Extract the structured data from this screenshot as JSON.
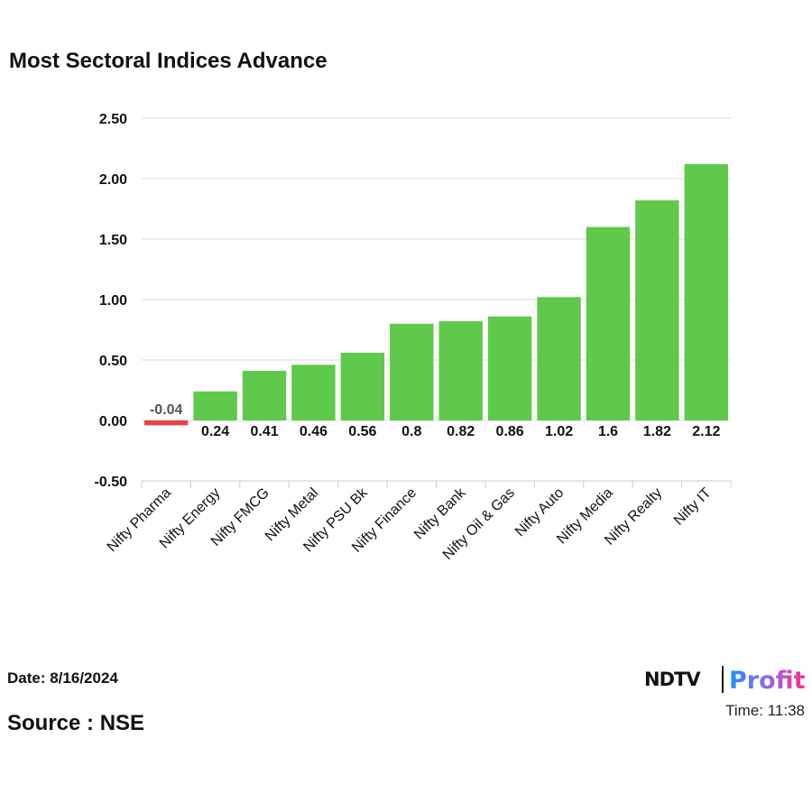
{
  "header": {
    "title": "Most Sectoral Indices Advance"
  },
  "footer": {
    "date": "Date: 8/16/2024",
    "source": "Source : NSE",
    "time": "Time: 11:38",
    "logo_text": "NDTV Profit"
  },
  "chart_data": {
    "type": "bar",
    "title": "Most Sectoral Indices Advance",
    "xlabel": "",
    "ylabel": "",
    "categories": [
      "Nifty Pharma",
      "Nifty Energy",
      "Nifty FMCG",
      "Nifty Metal",
      "Nifty PSU Bk",
      "Nifty Finance",
      "Nifty Bank",
      "Nifty Oil & Gas",
      "Nifty Auto",
      "Nifty Media",
      "Nifty Realty",
      "Nifty IT"
    ],
    "values": [
      -0.04,
      0.24,
      0.41,
      0.46,
      0.56,
      0.8,
      0.82,
      0.86,
      1.02,
      1.6,
      1.82,
      2.12
    ],
    "data_labels": [
      "-0.04",
      "0.24",
      "0.41",
      "0.46",
      "0.56",
      "0.8",
      "0.82",
      "0.86",
      "1.02",
      "1.6",
      "1.82",
      "2.12"
    ],
    "ylim": [
      -0.5,
      2.5
    ],
    "yticks": [
      "-0.50",
      "0.00",
      "0.50",
      "1.00",
      "1.50",
      "2.00",
      "2.50"
    ],
    "grid": true,
    "legend": "none",
    "colors": {
      "positive": "#5ec94a",
      "negative": "#e8414a",
      "grid": "#d9d9d9"
    }
  }
}
